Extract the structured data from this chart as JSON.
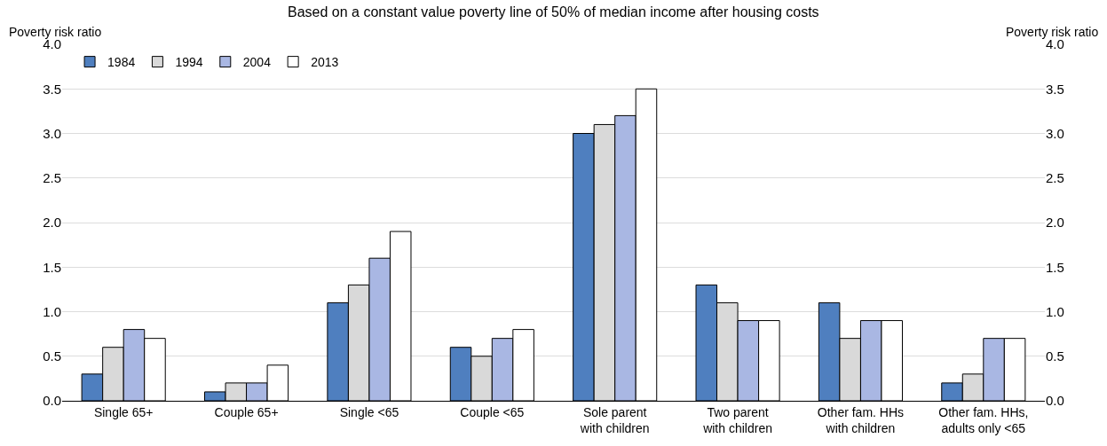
{
  "chart_data": {
    "type": "bar",
    "subtitle": "Based on a constant value poverty line of 50% of median income after housing costs",
    "ylabel": "Poverty risk ratio",
    "y2label": "Poverty risk ratio",
    "categories": [
      "Single 65+",
      "Couple 65+",
      "Single <65",
      "Couple <65",
      "Sole parent\nwith children",
      "Two parent\nwith children",
      "Other fam. HHs\nwith children",
      "Other fam. HHs,\nadults only <65"
    ],
    "series": [
      {
        "name": "1984",
        "color": "#4f7fbf",
        "values": [
          0.3,
          0.1,
          1.1,
          0.6,
          3.0,
          1.3,
          1.1,
          0.2
        ]
      },
      {
        "name": "1994",
        "color": "#d9d9d9",
        "values": [
          0.6,
          0.2,
          1.3,
          0.5,
          3.1,
          1.1,
          0.7,
          0.3
        ]
      },
      {
        "name": "2004",
        "color": "#a9b7e3",
        "values": [
          0.8,
          0.2,
          1.6,
          0.7,
          3.2,
          0.9,
          0.9,
          0.7
        ]
      },
      {
        "name": "2013",
        "color": "#ffffff",
        "values": [
          0.7,
          0.4,
          1.9,
          0.8,
          3.5,
          0.9,
          0.9,
          0.7
        ]
      }
    ],
    "ylim": [
      0,
      4
    ],
    "yticks": [
      {
        "value": 0,
        "label": "0.0"
      },
      {
        "value": 0.5,
        "label": "0.5"
      },
      {
        "value": 1,
        "label": "1.0"
      },
      {
        "value": 1.5,
        "label": "1.5"
      },
      {
        "value": 2,
        "label": "2.0"
      },
      {
        "value": 2.5,
        "label": "2.5"
      },
      {
        "value": 3,
        "label": "3.0"
      },
      {
        "value": 3.5,
        "label": "3.5"
      },
      {
        "value": 4,
        "label": "4.0"
      }
    ],
    "y2lim": [
      0,
      4
    ],
    "y2ticks": [
      {
        "value": 0,
        "label": "0.0"
      },
      {
        "value": 0.5,
        "label": "0.5"
      },
      {
        "value": 1,
        "label": "1.0"
      },
      {
        "value": 1.5,
        "label": "1.5"
      },
      {
        "value": 2,
        "label": "2.0"
      },
      {
        "value": 2.5,
        "label": "2.5"
      },
      {
        "value": 3,
        "label": "3.0"
      },
      {
        "value": 3.5,
        "label": "3.5"
      },
      {
        "value": 4,
        "label": "4.0"
      }
    ],
    "grid": "y",
    "legend": "top left"
  }
}
